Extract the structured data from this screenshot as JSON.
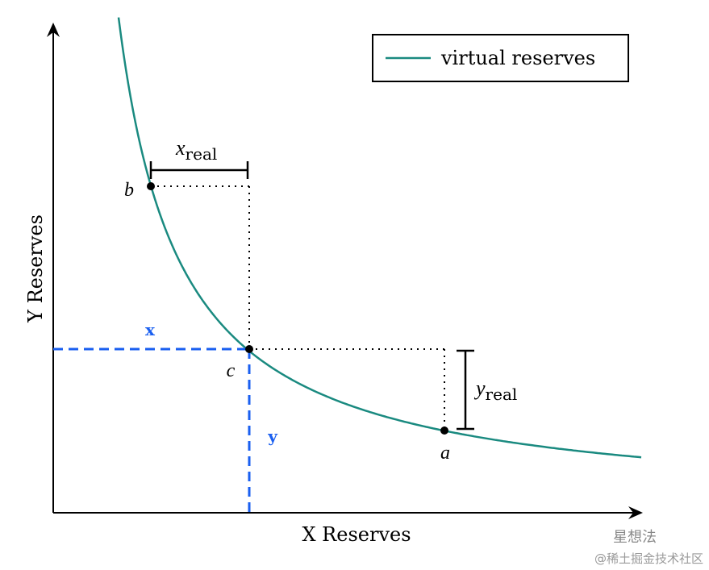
{
  "legend": {
    "label": "virtual reserves"
  },
  "axes": {
    "x_label": "X Reserves",
    "y_label": "Y Reserves"
  },
  "points": {
    "a": "a",
    "b": "b",
    "c": "c"
  },
  "brackets": {
    "x_real": {
      "var": "x",
      "sub": "real"
    },
    "y_real": {
      "var": "y",
      "sub": "real"
    }
  },
  "dashed": {
    "x": "x",
    "y": "y"
  },
  "watermark": {
    "name": "星想法",
    "site": "@稀土掘金技术社区"
  }
}
